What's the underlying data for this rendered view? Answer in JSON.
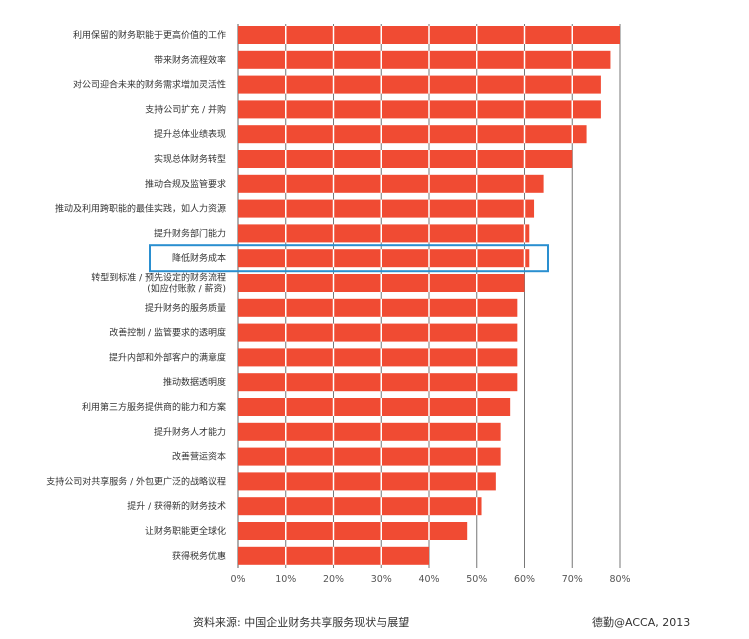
{
  "chart_data": {
    "type": "bar",
    "orientation": "horizontal",
    "categories": [
      "利用保留的财务职能于更高价值的工作",
      "带来财务流程效率",
      "对公司迎合未来的财务需求增加灵活性",
      "支持公司扩充 / 并购",
      "提升总体业绩表现",
      "实现总体财务转型",
      "推动合规及监管要求",
      "推动及利用跨职能的最佳实践，如人力资源",
      "提升财务部门能力",
      "降低财务成本",
      "转型到标准 / 预先设定的财务流程\n(如应付账款 / 薪资)",
      "提升财务的服务质量",
      "改善控制 / 监管要求的透明度",
      "提升内部和外部客户的满意度",
      "推动数据透明度",
      "利用第三方服务提供商的能力和方案",
      "提升财务人才能力",
      "改善营运资本",
      "支持公司对共享服务 / 外包更广泛的战略议程",
      "提升 / 获得新的财务技术",
      "让财务职能更全球化",
      "获得税务优惠"
    ],
    "values": [
      80,
      78,
      76,
      76,
      73,
      70,
      64,
      62,
      61,
      61,
      60,
      58.5,
      58.5,
      58.5,
      58.5,
      57,
      55,
      55,
      54,
      51,
      48,
      40
    ],
    "highlighted_category": "降低财务成本",
    "xlim": [
      0,
      80
    ],
    "xticks": [
      "0%",
      "10%",
      "20%",
      "30%",
      "40%",
      "50%",
      "60%",
      "70%",
      "80%"
    ],
    "grid": true,
    "colors": {
      "bar": "#f04b33",
      "highlight": "#2a8fd0",
      "grid": "#777777"
    }
  },
  "footer": {
    "source": "资料来源: 中国企业财务共享服务现状与展望",
    "credit": "德勤@ACCA, 2013"
  }
}
